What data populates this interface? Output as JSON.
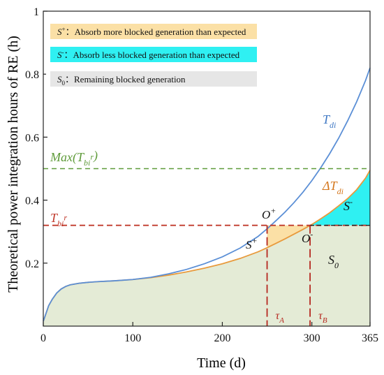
{
  "chart_data": {
    "type": "area",
    "xlabel": "Time (d)",
    "ylabel": "Theoretical power integration hours of RE (h)",
    "xlim": [
      0,
      365
    ],
    "ylim": [
      0,
      1
    ],
    "x_ticks": [
      0,
      100,
      200,
      300,
      365
    ],
    "y_ticks": [
      0.2,
      0.4,
      0.6,
      0.8,
      1
    ],
    "x_tick_labels": [
      "0",
      "100",
      "200",
      "300",
      "365"
    ],
    "y_tick_labels": [
      "0.2",
      "0.4",
      "0.6",
      "0.8",
      "1"
    ],
    "series": [
      {
        "name": "T_di",
        "color": "#5b8fd6",
        "x": [
          0,
          3,
          6,
          10,
          15,
          20,
          25,
          30,
          40,
          50,
          60,
          80,
          100,
          120,
          140,
          160,
          180,
          200,
          220,
          240,
          250,
          260,
          270,
          280,
          290,
          300,
          310,
          320,
          330,
          340,
          350,
          360,
          365
        ],
        "y": [
          0.015,
          0.04,
          0.065,
          0.085,
          0.105,
          0.118,
          0.126,
          0.131,
          0.136,
          0.139,
          0.141,
          0.144,
          0.148,
          0.155,
          0.166,
          0.18,
          0.198,
          0.22,
          0.248,
          0.285,
          0.309,
          0.335,
          0.362,
          0.392,
          0.425,
          0.462,
          0.503,
          0.548,
          0.597,
          0.652,
          0.712,
          0.78,
          0.82
        ]
      },
      {
        "name": "ΔT_di",
        "color": "#e89a3c",
        "x": [
          0,
          3,
          6,
          10,
          15,
          20,
          25,
          30,
          40,
          50,
          60,
          80,
          100,
          120,
          140,
          160,
          180,
          200,
          220,
          240,
          250,
          260,
          270,
          280,
          290,
          300,
          310,
          320,
          330,
          340,
          350,
          360,
          365
        ],
        "y": [
          0.015,
          0.04,
          0.065,
          0.085,
          0.105,
          0.118,
          0.126,
          0.131,
          0.136,
          0.139,
          0.141,
          0.144,
          0.148,
          0.154,
          0.162,
          0.172,
          0.184,
          0.198,
          0.215,
          0.236,
          0.249,
          0.263,
          0.277,
          0.292,
          0.307,
          0.323,
          0.341,
          0.36,
          0.382,
          0.405,
          0.433,
          0.47,
          0.495
        ]
      }
    ],
    "reference_lines": [
      {
        "name": "Max(T_bi^r)",
        "y": 0.5,
        "color": "#5f9b3a",
        "style": "dashed"
      },
      {
        "name": "T_bi^r",
        "y": 0.32,
        "color": "#c0392b",
        "style": "dashed"
      }
    ],
    "markers": [
      {
        "label_main": "O",
        "label_sup": "+",
        "x": 250,
        "y": 0.32
      },
      {
        "label_main": "O",
        "label_sup": "-",
        "x": 298,
        "y": 0.32
      }
    ],
    "tau": [
      {
        "label_main": "τ",
        "label_sub": "A",
        "x": 250
      },
      {
        "label_main": "τ",
        "label_sub": "B",
        "x": 298
      }
    ],
    "regions": [
      {
        "name": "S+",
        "color": "#fbe0a6"
      },
      {
        "name": "S-",
        "color": "#2ff0f2"
      },
      {
        "name": "S0",
        "color": "#e4ebd6"
      }
    ],
    "legend_placement": "top-left",
    "legend": [
      {
        "sym_main": "S",
        "sym_sup": "+",
        "sym_sub": "",
        "text": "Absorb more blocked generation than expected",
        "color": "#fbe0a6"
      },
      {
        "sym_main": "S",
        "sym_sup": "-",
        "sym_sub": "",
        "text": "Absorb less blocked generation than expected",
        "color": "#2ff0f2"
      },
      {
        "sym_main": "S",
        "sym_sup": "",
        "sym_sub": "0",
        "text": "Remaining blocked generation",
        "color": "#e6e6e6"
      }
    ],
    "annotations": {
      "tdi": {
        "main": "T",
        "sub": "di"
      },
      "dtdi": {
        "main": "ΔT",
        "sub": "di"
      },
      "max": {
        "pre": "Max(T",
        "sub": "bi",
        "sup": "r",
        "post": ")"
      },
      "tbi": {
        "main": "T",
        "sub": "bi",
        "sup": "r"
      },
      "s_plus": {
        "main": "S",
        "sup": "+"
      },
      "s_minus": {
        "main": "S",
        "sup": "-"
      },
      "s_zero": {
        "main": "S",
        "sub": "0"
      }
    },
    "colon": "：",
    "grid": false
  }
}
